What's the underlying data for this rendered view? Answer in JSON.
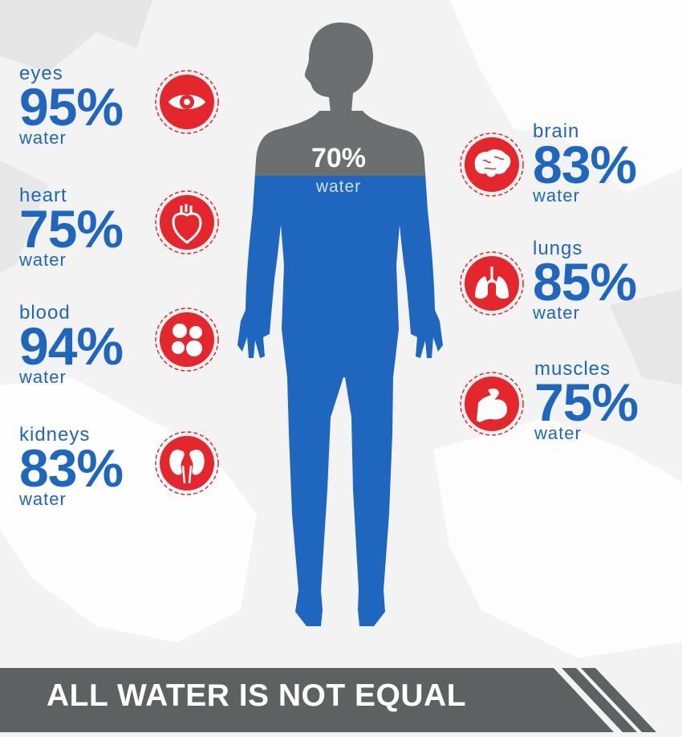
{
  "body": {
    "percent": "70%",
    "unit": "water"
  },
  "organs_left": [
    {
      "organ": "eyes",
      "percent": "95%",
      "unit": "water",
      "icon": "eye-icon"
    },
    {
      "organ": "heart",
      "percent": "75%",
      "unit": "water",
      "icon": "heart-organ-icon"
    },
    {
      "organ": "blood",
      "percent": "94%",
      "unit": "water",
      "icon": "blood-cells-icon"
    },
    {
      "organ": "kidneys",
      "percent": "83%",
      "unit": "water",
      "icon": "kidneys-icon"
    }
  ],
  "organs_right": [
    {
      "organ": "brain",
      "percent": "83%",
      "unit": "water",
      "icon": "brain-icon"
    },
    {
      "organ": "lungs",
      "percent": "85%",
      "unit": "water",
      "icon": "lungs-icon"
    },
    {
      "organ": "muscles",
      "percent": "75%",
      "unit": "water",
      "icon": "muscle-arm-icon"
    }
  ],
  "banner": {
    "text": "ALL WATER IS NOT EQUAL"
  },
  "colors": {
    "blue": "#1f66bf",
    "red": "#e4262d",
    "gray": "#6d6e70",
    "banner": "#5f6062"
  }
}
